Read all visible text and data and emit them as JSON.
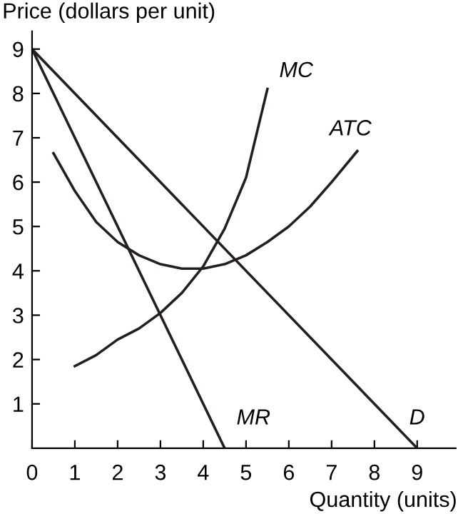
{
  "chart_data": {
    "type": "line",
    "xlabel": "Quantity (units)",
    "ylabel": "Price (dollars per unit)",
    "xlim": [
      0,
      9.9
    ],
    "ylim": [
      0,
      9.4
    ],
    "xticks": [
      0,
      1,
      2,
      3,
      4,
      5,
      6,
      7,
      8,
      9
    ],
    "yticks": [
      1,
      2,
      3,
      4,
      5,
      6,
      7,
      8,
      9
    ],
    "grid": false,
    "legend": false,
    "marker": "none",
    "line_style": "solid",
    "series": [
      {
        "name": "MC",
        "color": "#231f20",
        "x": [
          1,
          1.5,
          2,
          2.5,
          3,
          3.5,
          4,
          4.5,
          5,
          5.5
        ],
        "values": [
          1.85,
          2.1,
          2.45,
          2.7,
          3.05,
          3.5,
          4.1,
          4.95,
          6.1,
          8.1
        ]
      },
      {
        "name": "ATC",
        "color": "#231f20",
        "x": [
          0.5,
          1,
          1.5,
          2,
          2.5,
          3,
          3.5,
          4,
          4.5,
          5,
          5.5,
          6,
          6.5,
          7,
          7.6
        ],
        "values": [
          6.65,
          5.8,
          5.1,
          4.65,
          4.35,
          4.15,
          4.05,
          4.05,
          4.15,
          4.35,
          4.65,
          5.0,
          5.45,
          6.0,
          6.7
        ]
      },
      {
        "name": "MR",
        "color": "#231f20",
        "x": [
          0,
          4.5
        ],
        "values": [
          9,
          0
        ]
      },
      {
        "name": "D",
        "color": "#231f20",
        "x": [
          0,
          9
        ],
        "values": [
          9,
          0
        ]
      }
    ]
  }
}
